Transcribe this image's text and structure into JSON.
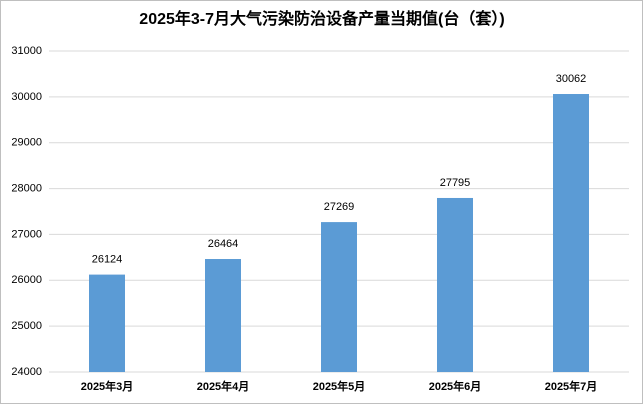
{
  "chart_data": {
    "type": "bar",
    "title": "2025年3-7月大气污染防治设备产量当期值(台（套）)",
    "categories": [
      "2025年3月",
      "2025年4月",
      "2025年5月",
      "2025年6月",
      "2025年7月"
    ],
    "values": [
      26124,
      26464,
      27269,
      27795,
      30062
    ],
    "color": "#5b9bd5",
    "ylim": [
      24000,
      31000
    ],
    "yticks": [
      24000,
      25000,
      26000,
      27000,
      28000,
      29000,
      30000,
      31000
    ],
    "grid": true
  }
}
